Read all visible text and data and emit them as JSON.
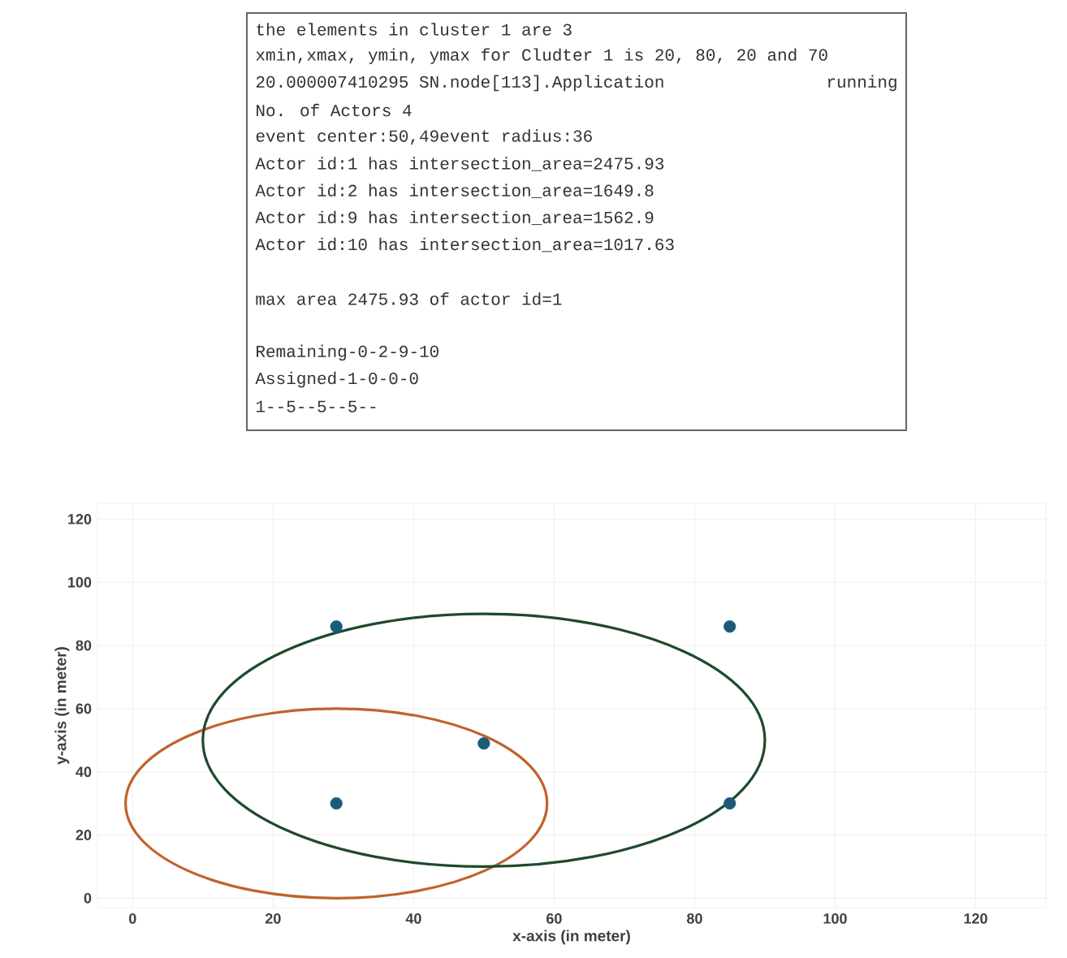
{
  "chart_data": {
    "type": "scatter",
    "xlabel": "x-axis (in meter)",
    "ylabel": "y-axis (in meter)",
    "xlim": [
      -5,
      130
    ],
    "ylim": [
      -3,
      125
    ],
    "xticks": [
      0,
      20,
      40,
      60,
      80,
      100,
      120
    ],
    "yticks": [
      0,
      20,
      40,
      60,
      80,
      100,
      120
    ],
    "grid": true,
    "marker": "circle",
    "series": [
      {
        "color": "#1b5a78",
        "x": [
          29,
          29,
          50,
          85,
          85
        ],
        "values": [
          86,
          30,
          49,
          86,
          30
        ]
      }
    ],
    "annotations": [
      "the elements in cluster 1 are 3",
      "xmin,xmax, ymin, ymax for Cludter 1 is 20, 80, 20 and 70",
      "20.000007410295 SN.node[113].Application",
      "running",
      "No. of Actors 4",
      "event center:50,49event radius:36",
      "Actor id:1 has intersection_area=2475.93",
      "Actor id:2 has intersection_area=1649.8",
      "Actor id:9 has intersection_area=1562.9",
      "Actor id:10 has intersection_area=1017.63",
      "max area 2475.93 of actor id=1",
      "Remaining-0-2-9-10",
      "Assigned-1-0-0-0",
      "1--5--5--5--"
    ]
  }
}
